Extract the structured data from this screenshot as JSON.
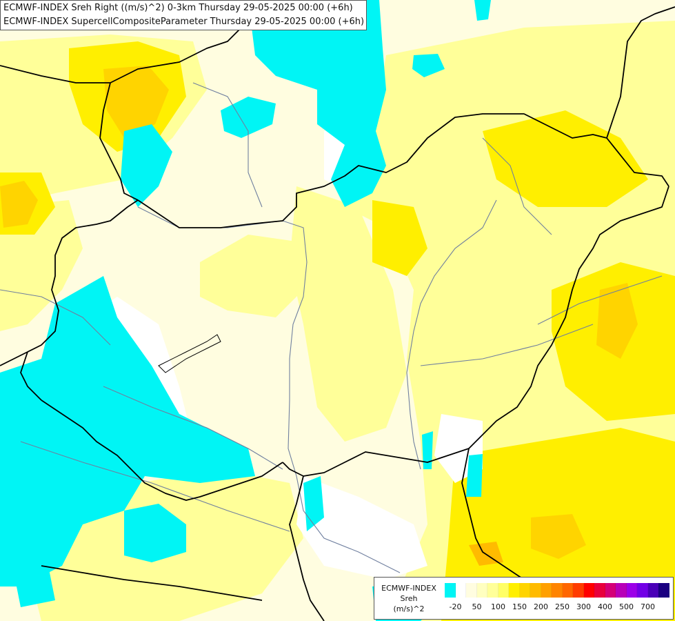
{
  "title": {
    "line1": "ECMWF-INDEX Sreh Right ((m/s)^2) 0-3km Thursday 29-05-2025 00:00 (+6h)",
    "line2": "ECMWF-INDEX SupercellCompositeParameter Thursday 29-05-2025 00:00 (+6h)"
  },
  "legend": {
    "line1": "ECMWF-INDEX",
    "line2": "Sreh",
    "line3": "(m/s)^2",
    "colors": [
      "#00f5f5",
      "#ffffff",
      "#fffde0",
      "#ffffc0",
      "#ffff99",
      "#ffff66",
      "#ffef00",
      "#ffd400",
      "#ffbb00",
      "#ffa000",
      "#ff8400",
      "#ff6600",
      "#ff3c00",
      "#ff0000",
      "#e8003c",
      "#d40078",
      "#b800b8",
      "#9c00e8",
      "#7200e6",
      "#4a00b8",
      "#1a0080"
    ],
    "ticks": [
      "-20",
      "50",
      "100",
      "150",
      "200",
      "250",
      "300",
      "400",
      "500",
      "700"
    ]
  },
  "colors": {
    "cyan": "#00f5f5",
    "white": "#ffffff",
    "pale": "#fffde0",
    "lightyellow": "#ffffc0",
    "yellow": "#ffff99",
    "yellow2": "#ffff66",
    "gold": "#ffef00",
    "orange": "#ffd400",
    "darkorange": "#ffbb00",
    "border": "#000000",
    "river": "#6f7f9f"
  }
}
